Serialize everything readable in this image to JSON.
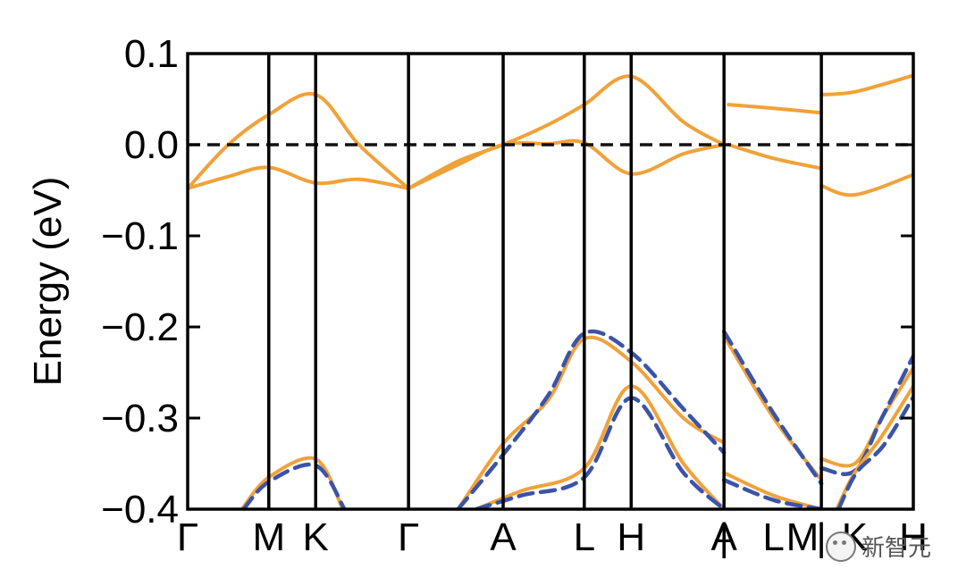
{
  "chart_data": {
    "type": "line",
    "ylabel": "Energy (eV)",
    "ylim": [
      -0.4,
      0.1
    ],
    "yticks": [
      "0.1",
      "0.0",
      "−0.1",
      "−0.2",
      "−0.3",
      "−0.4"
    ],
    "ytick_values": [
      0.1,
      0.0,
      -0.1,
      -0.2,
      -0.3,
      -0.4
    ],
    "xticks": [
      "Γ",
      "M",
      "K",
      "Γ",
      "A",
      "L",
      "H",
      "A",
      "|",
      "L",
      "M",
      "|",
      "K",
      "H"
    ],
    "xtick_positions": [
      0,
      0.9,
      1.42,
      2.45,
      3.5,
      4.4,
      4.92,
      5.95,
      5.95,
      6.5,
      6.82,
      7.03,
      7.4,
      8.05
    ],
    "xlim": [
      0,
      8.05
    ],
    "kpath_boundaries": [
      0.9,
      1.42,
      2.45,
      3.5,
      4.4,
      4.92,
      5.95,
      7.03
    ],
    "reference_line": {
      "y": 0.0,
      "style": "dashed",
      "color": "#111111"
    },
    "series": [
      {
        "color": "#F0A23A",
        "style": "solid",
        "x": [
          0,
          0.45,
          0.9,
          1.42,
          1.9,
          2.45
        ],
        "y": [
          -0.048,
          0.0,
          0.033,
          0.055,
          0.0,
          -0.048
        ]
      },
      {
        "color": "#F0A23A",
        "style": "solid",
        "x": [
          0,
          0.45,
          0.9,
          1.42,
          1.9,
          2.45
        ],
        "y": [
          -0.048,
          -0.035,
          -0.025,
          -0.042,
          -0.038,
          -0.048
        ]
      },
      {
        "color": "#F0A23A",
        "style": "solid",
        "x": [
          2.45,
          3.0,
          3.5,
          4.0,
          4.4,
          4.92,
          5.5,
          5.95
        ],
        "y": [
          -0.048,
          -0.018,
          0.0,
          0.022,
          0.044,
          0.075,
          0.025,
          0.0
        ]
      },
      {
        "color": "#F0A23A",
        "style": "solid",
        "x": [
          2.45,
          3.0,
          3.5,
          4.0,
          4.4,
          4.92,
          5.5,
          5.95
        ],
        "y": [
          -0.048,
          -0.022,
          0.0,
          0.001,
          0.002,
          -0.032,
          -0.01,
          0.0
        ]
      },
      {
        "color": "#F0A23A",
        "style": "solid",
        "x": [
          6.0,
          6.5,
          7.03
        ],
        "y": [
          0.044,
          0.04,
          0.035
        ]
      },
      {
        "color": "#F0A23A",
        "style": "solid",
        "x": [
          6.0,
          6.5,
          7.03
        ],
        "y": [
          0.0,
          -0.015,
          -0.026
        ]
      },
      {
        "color": "#F0A23A",
        "style": "solid",
        "x": [
          7.03,
          7.4,
          8.05
        ],
        "y": [
          0.055,
          0.058,
          0.076
        ]
      },
      {
        "color": "#F0A23A",
        "style": "solid",
        "x": [
          7.03,
          7.4,
          8.05
        ],
        "y": [
          -0.045,
          -0.055,
          -0.033
        ]
      },
      {
        "color": "#F0A23A",
        "style": "solid",
        "x": [
          0.6,
          0.9,
          1.42,
          1.72
        ],
        "y": [
          -0.4,
          -0.365,
          -0.345,
          -0.4
        ]
      },
      {
        "color": "#3B54A8",
        "style": "dashed",
        "x": [
          0.62,
          0.9,
          1.42,
          1.74
        ],
        "y": [
          -0.4,
          -0.37,
          -0.352,
          -0.4
        ]
      },
      {
        "color": "#F0A23A",
        "style": "solid",
        "x": [
          3.0,
          3.5,
          4.0,
          4.4,
          4.92,
          5.5,
          5.95
        ],
        "y": [
          -0.4,
          -0.328,
          -0.28,
          -0.213,
          -0.238,
          -0.3,
          -0.327
        ]
      },
      {
        "color": "#3B54A8",
        "style": "dashed",
        "x": [
          3.0,
          3.5,
          4.0,
          4.4,
          4.92,
          5.5,
          5.95
        ],
        "y": [
          -0.4,
          -0.34,
          -0.275,
          -0.207,
          -0.228,
          -0.29,
          -0.338
        ]
      },
      {
        "color": "#F0A23A",
        "style": "solid",
        "x": [
          3.2,
          3.7,
          4.4,
          4.92,
          5.5,
          5.95
        ],
        "y": [
          -0.4,
          -0.38,
          -0.355,
          -0.265,
          -0.35,
          -0.4
        ]
      },
      {
        "color": "#3B54A8",
        "style": "dashed",
        "x": [
          3.2,
          3.7,
          4.4,
          4.92,
          5.5,
          5.95
        ],
        "y": [
          -0.4,
          -0.385,
          -0.365,
          -0.278,
          -0.36,
          -0.4
        ]
      },
      {
        "color": "#F0A23A",
        "style": "solid",
        "x": [
          5.95,
          6.5,
          7.03
        ],
        "y": [
          -0.21,
          -0.3,
          -0.368
        ]
      },
      {
        "color": "#3B54A8",
        "style": "dashed",
        "x": [
          5.95,
          6.5,
          7.03
        ],
        "y": [
          -0.205,
          -0.295,
          -0.372
        ]
      },
      {
        "color": "#F0A23A",
        "style": "solid",
        "x": [
          5.95,
          6.5,
          7.03
        ],
        "y": [
          -0.36,
          -0.385,
          -0.4
        ]
      },
      {
        "color": "#3B54A8",
        "style": "dashed",
        "x": [
          5.95,
          6.5,
          7.03
        ],
        "y": [
          -0.368,
          -0.39,
          -0.4
        ]
      },
      {
        "color": "#F0A23A",
        "style": "solid",
        "x": [
          7.03,
          7.4,
          7.7,
          8.05
        ],
        "y": [
          -0.345,
          -0.35,
          -0.3,
          -0.245
        ]
      },
      {
        "color": "#3B54A8",
        "style": "dashed",
        "x": [
          7.03,
          7.4,
          7.7,
          8.05
        ],
        "y": [
          -0.355,
          -0.358,
          -0.3,
          -0.232
        ]
      },
      {
        "color": "#F0A23A",
        "style": "solid",
        "x": [
          7.2,
          7.4,
          7.7,
          8.05
        ],
        "y": [
          -0.4,
          -0.36,
          -0.32,
          -0.265
        ]
      },
      {
        "color": "#3B54A8",
        "style": "dashed",
        "x": [
          7.22,
          7.42,
          7.72,
          8.05
        ],
        "y": [
          -0.4,
          -0.36,
          -0.33,
          -0.277
        ]
      }
    ]
  },
  "watermark": {
    "text": "新智元",
    "icon": "wechat-icon"
  }
}
